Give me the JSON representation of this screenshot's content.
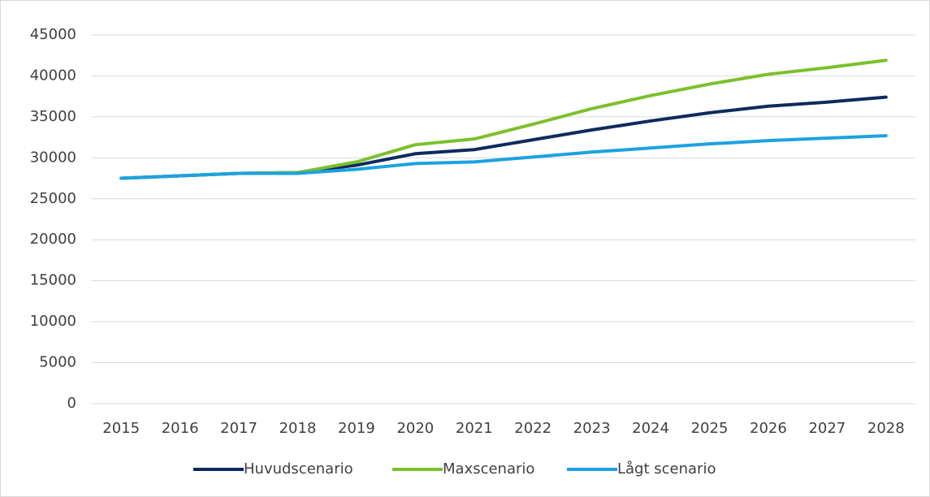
{
  "chart_data": {
    "type": "line",
    "categories": [
      "2015",
      "2016",
      "2017",
      "2018",
      "2019",
      "2020",
      "2021",
      "2022",
      "2023",
      "2024",
      "2025",
      "2026",
      "2027",
      "2028"
    ],
    "series": [
      {
        "name": "Huvudscenario",
        "color": "#0e2a5e",
        "values": [
          27500,
          27800,
          28100,
          28200,
          29100,
          30500,
          31000,
          32200,
          33400,
          34500,
          35500,
          36300,
          36800,
          37400
        ]
      },
      {
        "name": "Maxscenario",
        "color": "#7cc02c",
        "values": [
          27500,
          27800,
          28100,
          28200,
          29500,
          31600,
          32300,
          34100,
          36000,
          37600,
          39000,
          40200,
          41000,
          41900
        ]
      },
      {
        "name": "Lågt scenario",
        "color": "#1ca2e0",
        "values": [
          27500,
          27800,
          28100,
          28100,
          28600,
          29300,
          29500,
          30100,
          30700,
          31200,
          31700,
          32100,
          32400,
          32700
        ]
      }
    ],
    "ylim": [
      0,
      45000
    ],
    "yticks": [
      0,
      5000,
      10000,
      15000,
      20000,
      25000,
      30000,
      35000,
      40000,
      45000
    ],
    "grid": true,
    "legend": "bottom"
  }
}
